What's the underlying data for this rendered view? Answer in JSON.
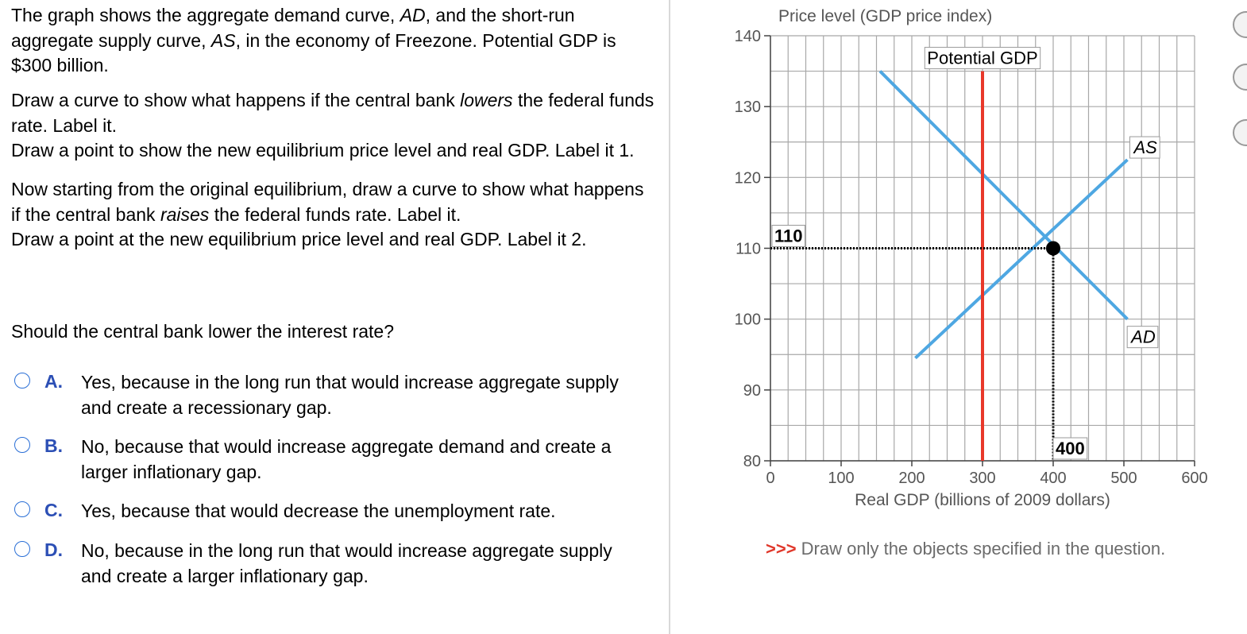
{
  "question": {
    "intro_p1": "The graph shows the aggregate demand curve, ",
    "intro_ad": "AD",
    "intro_p2": ", and the short-run aggregate supply curve, ",
    "intro_as": "AS",
    "intro_p3": ", in the economy of Freezone. Potential GDP is $300 billion.",
    "task1_a": "Draw a curve to show what happens if the central bank ",
    "task1_em": "lowers",
    "task1_b": " the federal funds rate. Label it.",
    "task1_c": "Draw a point to show the new equilibrium price level and real GDP. Label it 1.",
    "task2_a": "Now starting from the original equilibrium, draw a curve to show what happens if the central bank ",
    "task2_em": "raises",
    "task2_b": " the federal funds rate. Label it.",
    "task2_c": "Draw a point at the new equilibrium price level and real GDP. Label it 2.",
    "prompt": "Should the central bank lower the interest rate?"
  },
  "options": [
    {
      "letter": "A.",
      "text": "Yes, because in the long run that would increase aggregate supply and create a recessionary gap."
    },
    {
      "letter": "B.",
      "text": "No, because that would increase aggregate demand and create a larger inflationary gap."
    },
    {
      "letter": "C.",
      "text": "Yes, because that would decrease the unemployment rate."
    },
    {
      "letter": "D.",
      "text": "No, because in the long run that would increase aggregate supply and create a larger inflationary gap."
    }
  ],
  "note": {
    "arrows": ">>>",
    "text": " Draw only the objects specified in the question."
  },
  "colors": {
    "curve_blue": "#4ea7e2",
    "potential_red": "#e8382a",
    "option_blue": "#2c4fb5",
    "grid": "#a8a8a8"
  },
  "chart_data": {
    "type": "line",
    "ylabel": "Price level (GDP price index)",
    "xlabel": "Real GDP (billions of 2009 dollars)",
    "xlim": [
      0,
      600
    ],
    "ylim": [
      80,
      140
    ],
    "x_ticks": [
      0,
      100,
      200,
      300,
      400,
      500,
      600
    ],
    "y_ticks": [
      80,
      90,
      100,
      110,
      120,
      130,
      140
    ],
    "grid": true,
    "series": [
      {
        "name": "AD",
        "points": [
          [
            155,
            135
          ],
          [
            505,
            100
          ]
        ]
      },
      {
        "name": "AS",
        "points": [
          [
            205,
            94.5
          ],
          [
            505,
            122.5
          ]
        ]
      },
      {
        "name": "Potential GDP",
        "points": [
          [
            300,
            80
          ],
          [
            300,
            135
          ]
        ]
      }
    ],
    "equilibrium": {
      "x": 400,
      "y": 110,
      "x_label": "400",
      "y_label": "110"
    }
  }
}
